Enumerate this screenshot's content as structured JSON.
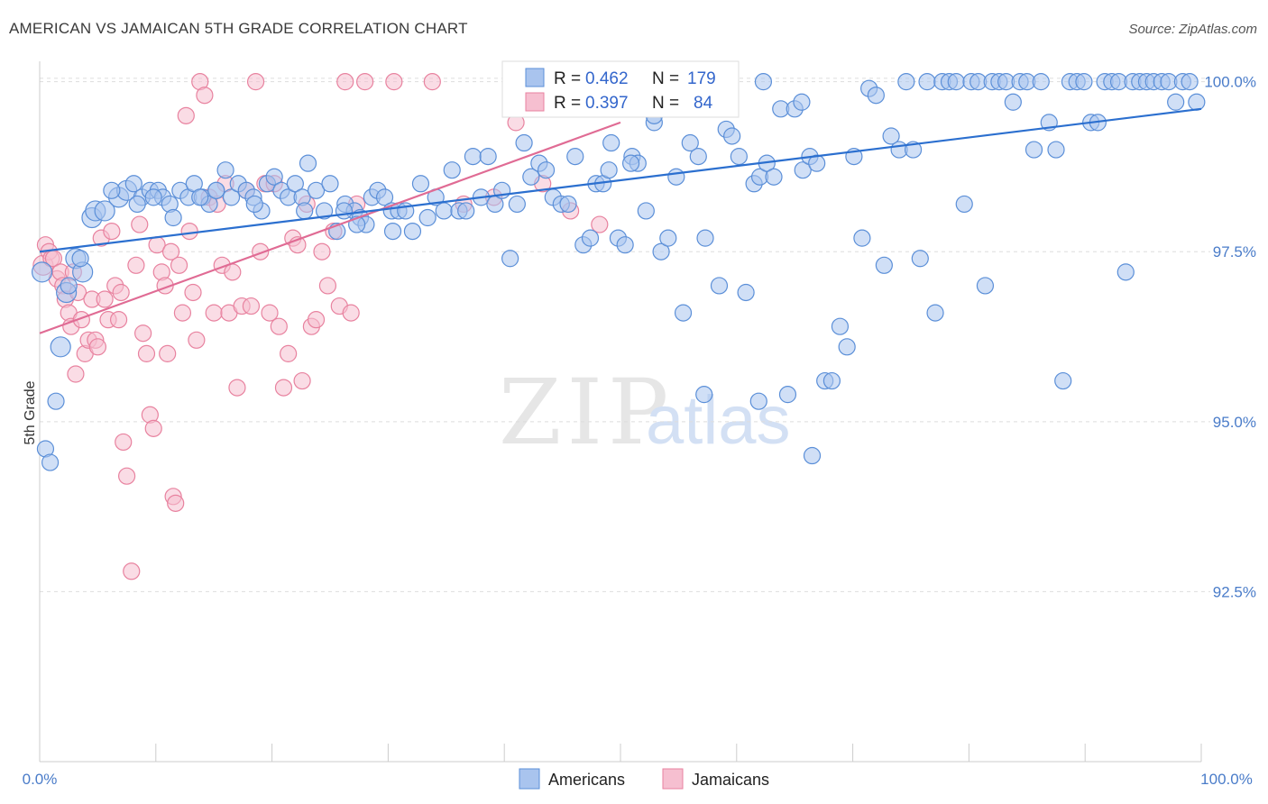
{
  "title": "AMERICAN VS JAMAICAN 5TH GRADE CORRELATION CHART",
  "source": "Source: ZipAtlas.com",
  "watermark": {
    "zip": "ZIP",
    "atlas": "atlas"
  },
  "colors": {
    "american_fill": "#a9c4ee",
    "american_stroke": "#5b8fd8",
    "american_line": "#2b6fcf",
    "jamaican_fill": "#f6bfd0",
    "jamaican_stroke": "#e8829f",
    "jamaican_line": "#e06b94",
    "tick_text": "#4a7cc9",
    "grid": "#dddddd"
  },
  "legend": {
    "american": {
      "r_label": "R =",
      "r_value": "0.462",
      "n_label": "N =",
      "n_value": "179"
    },
    "jamaican": {
      "r_label": "R =",
      "r_value": "0.397",
      "n_label": "N =",
      "n_value": "84"
    }
  },
  "chart_data": {
    "type": "scatter",
    "title": "AMERICAN VS JAMAICAN 5TH GRADE CORRELATION CHART",
    "xlabel": "",
    "ylabel": "5th Grade",
    "xlim": [
      0,
      100
    ],
    "ylim": [
      90.0,
      100.3
    ],
    "x_tick_labels": [
      "0.0%",
      "100.0%"
    ],
    "y_ticks": [
      92.5,
      95.0,
      97.5,
      100.0
    ],
    "y_tick_labels": [
      "92.5%",
      "95.0%",
      "97.5%",
      "100.0%"
    ],
    "grid": true,
    "legend_placement": "top-center",
    "series": [
      {
        "name": "Americans",
        "trend": {
          "x": [
            0,
            100
          ],
          "y": [
            97.5,
            99.6
          ]
        },
        "points": [
          [
            0.2,
            97.2
          ],
          [
            0.5,
            94.6
          ],
          [
            0.9,
            94.4
          ],
          [
            1.4,
            95.3
          ],
          [
            1.8,
            96.1
          ],
          [
            2.3,
            96.9
          ],
          [
            3.1,
            97.4
          ],
          [
            3.7,
            97.2
          ],
          [
            4.5,
            98.0
          ],
          [
            4.8,
            98.1
          ],
          [
            5.6,
            98.1
          ],
          [
            6.8,
            98.3
          ],
          [
            7.5,
            98.4
          ],
          [
            8.1,
            98.5
          ],
          [
            8.8,
            98.3
          ],
          [
            9.5,
            98.4
          ],
          [
            10.2,
            98.4
          ],
          [
            10.6,
            98.3
          ],
          [
            11.2,
            98.2
          ],
          [
            12.1,
            98.4
          ],
          [
            12.8,
            98.3
          ],
          [
            13.3,
            98.5
          ],
          [
            14.0,
            98.3
          ],
          [
            14.6,
            98.2
          ],
          [
            15.2,
            98.4
          ],
          [
            16.0,
            98.7
          ],
          [
            16.5,
            98.3
          ],
          [
            17.1,
            98.5
          ],
          [
            17.8,
            98.4
          ],
          [
            18.4,
            98.3
          ],
          [
            19.1,
            98.1
          ],
          [
            19.6,
            98.5
          ],
          [
            20.2,
            98.6
          ],
          [
            20.8,
            98.4
          ],
          [
            21.4,
            98.3
          ],
          [
            22.0,
            98.5
          ],
          [
            22.6,
            98.3
          ],
          [
            23.1,
            98.8
          ],
          [
            23.8,
            98.4
          ],
          [
            24.5,
            98.1
          ],
          [
            25.0,
            98.5
          ],
          [
            25.6,
            97.8
          ],
          [
            26.3,
            98.2
          ],
          [
            27.1,
            98.1
          ],
          [
            27.6,
            98.0
          ],
          [
            28.1,
            97.9
          ],
          [
            28.6,
            98.3
          ],
          [
            29.1,
            98.4
          ],
          [
            29.7,
            98.3
          ],
          [
            30.3,
            98.1
          ],
          [
            30.9,
            98.1
          ],
          [
            31.5,
            98.1
          ],
          [
            32.1,
            97.8
          ],
          [
            32.8,
            98.5
          ],
          [
            33.4,
            98.0
          ],
          [
            34.1,
            98.3
          ],
          [
            34.8,
            98.1
          ],
          [
            35.5,
            98.7
          ],
          [
            36.1,
            98.1
          ],
          [
            36.7,
            98.1
          ],
          [
            37.3,
            98.9
          ],
          [
            38.0,
            98.3
          ],
          [
            38.6,
            98.9
          ],
          [
            39.2,
            98.2
          ],
          [
            39.8,
            98.4
          ],
          [
            40.5,
            97.4
          ],
          [
            41.1,
            98.2
          ],
          [
            41.7,
            99.1
          ],
          [
            42.3,
            98.6
          ],
          [
            43.0,
            98.8
          ],
          [
            43.6,
            98.7
          ],
          [
            44.2,
            98.3
          ],
          [
            44.9,
            98.2
          ],
          [
            45.5,
            98.2
          ],
          [
            46.1,
            98.9
          ],
          [
            46.8,
            97.6
          ],
          [
            47.4,
            97.7
          ],
          [
            47.9,
            98.5
          ],
          [
            48.5,
            98.5
          ],
          [
            49.2,
            99.1
          ],
          [
            49.8,
            97.7
          ],
          [
            50.4,
            97.6
          ],
          [
            51.0,
            98.9
          ],
          [
            51.5,
            98.8
          ],
          [
            52.2,
            98.1
          ],
          [
            52.9,
            99.4
          ],
          [
            53.5,
            97.5
          ],
          [
            54.1,
            97.7
          ],
          [
            54.8,
            98.6
          ],
          [
            55.4,
            96.6
          ],
          [
            56.0,
            99.1
          ],
          [
            56.7,
            98.9
          ],
          [
            57.3,
            97.7
          ],
          [
            57.9,
            99.6
          ],
          [
            58.5,
            97.0
          ],
          [
            59.1,
            99.3
          ],
          [
            59.6,
            99.2
          ],
          [
            60.2,
            98.9
          ],
          [
            60.8,
            96.9
          ],
          [
            61.5,
            98.5
          ],
          [
            62.0,
            98.6
          ],
          [
            62.6,
            98.8
          ],
          [
            63.2,
            98.6
          ],
          [
            63.8,
            99.6
          ],
          [
            64.4,
            95.4
          ],
          [
            65.0,
            99.6
          ],
          [
            65.7,
            98.7
          ],
          [
            66.3,
            98.9
          ],
          [
            66.9,
            98.8
          ],
          [
            67.6,
            95.6
          ],
          [
            68.2,
            95.6
          ],
          [
            68.9,
            96.4
          ],
          [
            69.5,
            96.1
          ],
          [
            70.1,
            98.9
          ],
          [
            70.8,
            97.7
          ],
          [
            71.4,
            99.9
          ],
          [
            72.0,
            99.8
          ],
          [
            72.7,
            97.3
          ],
          [
            73.3,
            99.2
          ],
          [
            74.0,
            99.0
          ],
          [
            74.6,
            100.0
          ],
          [
            75.2,
            99.0
          ],
          [
            75.8,
            97.4
          ],
          [
            76.4,
            100.0
          ],
          [
            77.1,
            96.6
          ],
          [
            77.7,
            100.0
          ],
          [
            78.3,
            100.0
          ],
          [
            78.9,
            100.0
          ],
          [
            79.6,
            98.2
          ],
          [
            80.2,
            100.0
          ],
          [
            80.8,
            100.0
          ],
          [
            81.4,
            97.0
          ],
          [
            82.0,
            100.0
          ],
          [
            82.6,
            100.0
          ],
          [
            83.2,
            100.0
          ],
          [
            83.8,
            99.7
          ],
          [
            84.4,
            100.0
          ],
          [
            85.0,
            100.0
          ],
          [
            85.6,
            99.0
          ],
          [
            86.2,
            100.0
          ],
          [
            86.9,
            99.4
          ],
          [
            87.5,
            99.0
          ],
          [
            88.1,
            95.6
          ],
          [
            88.7,
            100.0
          ],
          [
            89.3,
            100.0
          ],
          [
            89.9,
            100.0
          ],
          [
            90.5,
            99.4
          ],
          [
            91.1,
            99.4
          ],
          [
            91.7,
            100.0
          ],
          [
            92.3,
            100.0
          ],
          [
            92.9,
            100.0
          ],
          [
            93.5,
            97.2
          ],
          [
            94.1,
            100.0
          ],
          [
            94.7,
            100.0
          ],
          [
            95.3,
            100.0
          ],
          [
            95.9,
            100.0
          ],
          [
            96.6,
            100.0
          ],
          [
            97.2,
            100.0
          ],
          [
            97.8,
            99.7
          ],
          [
            98.4,
            100.0
          ],
          [
            99.0,
            100.0
          ],
          [
            99.6,
            99.7
          ],
          [
            61.9,
            95.3
          ],
          [
            66.5,
            94.5
          ],
          [
            57.2,
            95.4
          ],
          [
            52.9,
            99.5
          ],
          [
            62.3,
            100.0
          ],
          [
            50.9,
            98.8
          ],
          [
            49.0,
            98.7
          ],
          [
            65.6,
            99.7
          ],
          [
            46.3,
            99.9
          ],
          [
            44.5,
            99.9
          ],
          [
            42.0,
            99.9
          ],
          [
            30.4,
            97.8
          ],
          [
            27.3,
            97.9
          ],
          [
            22.8,
            98.1
          ],
          [
            18.5,
            98.2
          ],
          [
            15.2,
            98.4
          ],
          [
            11.5,
            98.0
          ],
          [
            8.4,
            98.2
          ],
          [
            6.2,
            98.4
          ],
          [
            3.5,
            97.4
          ],
          [
            2.5,
            97.0
          ],
          [
            9.8,
            98.3
          ],
          [
            13.8,
            98.3
          ],
          [
            26.2,
            98.1
          ]
        ]
      },
      {
        "name": "Jamaicans",
        "trend": {
          "x": [
            0,
            50
          ],
          "y": [
            96.3,
            99.4
          ]
        },
        "points": [
          [
            0.3,
            97.3
          ],
          [
            0.5,
            97.6
          ],
          [
            0.8,
            97.5
          ],
          [
            1.0,
            97.4
          ],
          [
            1.2,
            97.4
          ],
          [
            1.5,
            97.1
          ],
          [
            1.8,
            97.2
          ],
          [
            2.0,
            97.0
          ],
          [
            2.2,
            96.8
          ],
          [
            2.5,
            96.6
          ],
          [
            2.7,
            96.4
          ],
          [
            2.9,
            97.2
          ],
          [
            3.1,
            95.7
          ],
          [
            3.3,
            96.9
          ],
          [
            3.6,
            96.5
          ],
          [
            3.9,
            96.0
          ],
          [
            4.2,
            96.2
          ],
          [
            4.5,
            96.8
          ],
          [
            4.8,
            96.2
          ],
          [
            5.0,
            96.1
          ],
          [
            5.3,
            97.7
          ],
          [
            5.6,
            96.8
          ],
          [
            5.9,
            96.5
          ],
          [
            6.2,
            97.8
          ],
          [
            6.5,
            97.0
          ],
          [
            6.8,
            96.5
          ],
          [
            7.0,
            96.9
          ],
          [
            7.2,
            94.7
          ],
          [
            7.5,
            94.2
          ],
          [
            7.9,
            92.8
          ],
          [
            8.3,
            97.3
          ],
          [
            8.6,
            97.9
          ],
          [
            8.9,
            96.3
          ],
          [
            9.2,
            96.0
          ],
          [
            9.5,
            95.1
          ],
          [
            9.8,
            94.9
          ],
          [
            10.1,
            97.6
          ],
          [
            10.5,
            97.2
          ],
          [
            10.8,
            97.0
          ],
          [
            11.0,
            96.0
          ],
          [
            11.3,
            97.5
          ],
          [
            11.5,
            93.9
          ],
          [
            11.7,
            93.8
          ],
          [
            12.0,
            97.3
          ],
          [
            12.3,
            96.6
          ],
          [
            12.6,
            99.5
          ],
          [
            12.9,
            97.8
          ],
          [
            13.2,
            96.9
          ],
          [
            13.5,
            96.2
          ],
          [
            13.8,
            100.0
          ],
          [
            14.2,
            99.8
          ],
          [
            14.6,
            98.3
          ],
          [
            15.0,
            96.6
          ],
          [
            15.3,
            98.2
          ],
          [
            15.7,
            97.3
          ],
          [
            16.0,
            98.5
          ],
          [
            16.3,
            96.6
          ],
          [
            16.6,
            97.2
          ],
          [
            17.0,
            95.5
          ],
          [
            17.4,
            96.7
          ],
          [
            17.8,
            98.4
          ],
          [
            18.2,
            96.7
          ],
          [
            18.6,
            100.0
          ],
          [
            19.0,
            97.5
          ],
          [
            19.4,
            98.5
          ],
          [
            19.8,
            96.6
          ],
          [
            20.2,
            98.5
          ],
          [
            20.6,
            96.4
          ],
          [
            21.0,
            95.5
          ],
          [
            21.4,
            96.0
          ],
          [
            21.8,
            97.7
          ],
          [
            22.2,
            97.6
          ],
          [
            22.6,
            95.6
          ],
          [
            23.0,
            98.2
          ],
          [
            23.4,
            96.4
          ],
          [
            23.8,
            96.5
          ],
          [
            24.3,
            97.5
          ],
          [
            24.8,
            97.0
          ],
          [
            25.3,
            97.8
          ],
          [
            25.8,
            96.7
          ],
          [
            26.3,
            100.0
          ],
          [
            26.8,
            96.6
          ],
          [
            27.3,
            98.2
          ],
          [
            28.0,
            100.0
          ],
          [
            30.5,
            100.0
          ],
          [
            33.8,
            100.0
          ],
          [
            36.5,
            98.2
          ],
          [
            39.1,
            98.3
          ],
          [
            41.0,
            99.4
          ],
          [
            43.3,
            98.5
          ],
          [
            45.7,
            98.1
          ],
          [
            48.2,
            97.9
          ]
        ]
      }
    ]
  },
  "bottom_legend": {
    "americans_label": "Americans",
    "jamaicans_label": "Jamaicans"
  }
}
